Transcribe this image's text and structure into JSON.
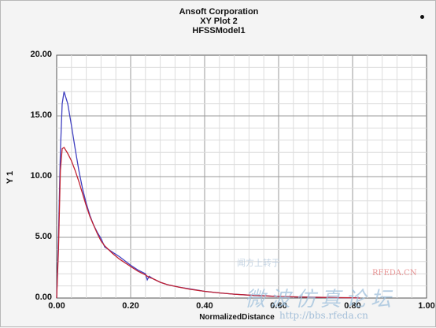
{
  "chart_data": {
    "type": "line",
    "title_lines": [
      "Ansoft Corporation",
      "XY Plot 2",
      "HFSSModel1"
    ],
    "xlabel": "NormalizedDistance",
    "ylabel": "Y 1",
    "xlim": [
      0,
      1
    ],
    "ylim": [
      0,
      20
    ],
    "x_ticks": [
      "0.00",
      "0.20",
      "0.40",
      "0.60",
      "0.80",
      "1.00"
    ],
    "x_tick_values": [
      0,
      0.2,
      0.4,
      0.6,
      0.8,
      1.0
    ],
    "y_ticks": [
      "0.00",
      "5.00",
      "10.00",
      "15.00",
      "20.00"
    ],
    "y_tick_values": [
      0,
      5,
      10,
      15,
      20
    ],
    "grid": true,
    "series": [
      {
        "color": "#4040c0",
        "x": [
          0.0,
          0.005,
          0.01,
          0.015,
          0.02,
          0.03,
          0.04,
          0.05,
          0.06,
          0.07,
          0.08,
          0.09,
          0.1,
          0.11,
          0.12,
          0.13,
          0.15,
          0.17,
          0.2,
          0.22,
          0.24,
          0.245,
          0.25,
          0.26,
          0.28,
          0.3,
          0.33,
          0.36,
          0.4,
          0.44,
          0.48,
          0.52,
          0.56,
          0.6,
          0.64,
          0.68,
          0.72,
          0.76,
          0.8,
          0.82
        ],
        "y": [
          0.0,
          5.0,
          12.0,
          16.0,
          17.0,
          16.0,
          14.2,
          12.3,
          10.5,
          9.0,
          7.8,
          6.8,
          6.0,
          5.4,
          4.9,
          4.2,
          3.8,
          3.4,
          2.7,
          2.3,
          2.0,
          1.5,
          1.8,
          1.6,
          1.3,
          1.1,
          0.9,
          0.75,
          0.55,
          0.42,
          0.32,
          0.24,
          0.18,
          0.13,
          0.1,
          0.07,
          0.05,
          0.03,
          0.02,
          0.0
        ]
      },
      {
        "color": "#c02030",
        "x": [
          0.0,
          0.005,
          0.01,
          0.015,
          0.02,
          0.03,
          0.04,
          0.05,
          0.06,
          0.07,
          0.08,
          0.09,
          0.1,
          0.11,
          0.12,
          0.13,
          0.15,
          0.17,
          0.2,
          0.22,
          0.24,
          0.25,
          0.26,
          0.28,
          0.3,
          0.33,
          0.36,
          0.4,
          0.44,
          0.48,
          0.52,
          0.56,
          0.6,
          0.64,
          0.68,
          0.72,
          0.76,
          0.8,
          0.82
        ],
        "y": [
          0.0,
          4.0,
          10.5,
          12.3,
          12.4,
          11.9,
          11.3,
          10.5,
          9.6,
          8.6,
          7.6,
          6.7,
          6.0,
          5.3,
          4.7,
          4.3,
          3.7,
          3.2,
          2.6,
          2.2,
          1.9,
          1.7,
          1.6,
          1.3,
          1.1,
          0.9,
          0.73,
          0.55,
          0.42,
          0.32,
          0.24,
          0.18,
          0.13,
          0.1,
          0.07,
          0.05,
          0.03,
          0.02,
          0.0
        ]
      }
    ]
  },
  "watermark": {
    "chinese": "微波仿真论坛",
    "url": "http://bbs.rfeda.cn",
    "small": "闻方上转于",
    "brand": "RFEDA.CN"
  }
}
